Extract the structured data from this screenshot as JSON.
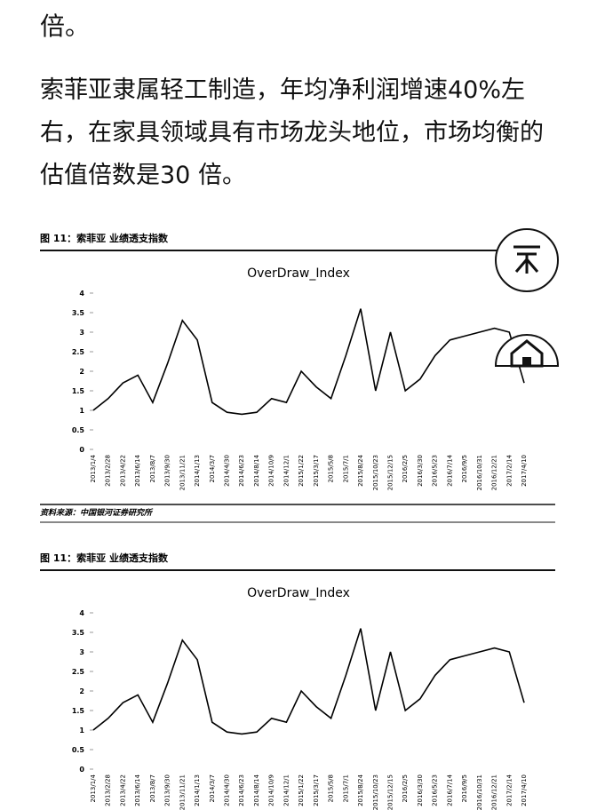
{
  "lead": "倍。",
  "paragraph": "索菲亚隶属轻工制造，年均净利润增速40%左右，在家具领域具有市场龙头地位，市场均衡的估值倍数是30 倍。",
  "figures": [
    {
      "caption": "图 11：索菲亚 业绩透支指数",
      "source": "资料来源：中国银河证券研究所",
      "chart": {
        "type": "line",
        "title": "OverDraw_Index",
        "color": "#000000",
        "categories": [
          "2013/1/4",
          "2013/2/28",
          "2013/4/22",
          "2013/6/14",
          "2013/8/7",
          "2013/9/30",
          "2013/11/21",
          "2014/1/13",
          "2014/3/7",
          "2014/4/30",
          "2014/6/23",
          "2014/8/14",
          "2014/10/9",
          "2014/12/1",
          "2015/1/22",
          "2015/3/17",
          "2015/5/8",
          "2015/7/1",
          "2015/8/24",
          "2015/10/23",
          "2015/12/15",
          "2016/2/5",
          "2016/3/30",
          "2016/5/23",
          "2016/7/14",
          "2016/9/5",
          "2016/10/31",
          "2016/12/21",
          "2017/2/14",
          "2017/4/10"
        ],
        "values": [
          1.0,
          1.3,
          1.7,
          1.9,
          1.2,
          2.2,
          3.3,
          2.8,
          1.2,
          0.95,
          0.9,
          0.95,
          1.3,
          1.2,
          2.0,
          1.6,
          1.3,
          2.4,
          3.6,
          1.5,
          3.0,
          1.5,
          1.8,
          2.4,
          2.8,
          2.9,
          3.0,
          3.1,
          3.0,
          1.7
        ],
        "ylim": [
          0,
          4
        ],
        "yticks": [
          0,
          0.5,
          1,
          1.5,
          2,
          2.5,
          3,
          3.5,
          4
        ]
      }
    },
    {
      "caption": "图 11：索菲亚 业绩透支指数",
      "chart": {
        "type": "line",
        "title": "OverDraw_Index",
        "color": "#000000",
        "categories": [
          "2013/1/4",
          "2013/2/28",
          "2013/4/22",
          "2013/6/14",
          "2013/8/7",
          "2013/9/30",
          "2013/11/21",
          "2014/1/13",
          "2014/3/7",
          "2014/4/30",
          "2014/6/23",
          "2014/8/14",
          "2014/10/9",
          "2014/12/1",
          "2015/1/22",
          "2015/3/17",
          "2015/5/8",
          "2015/7/1",
          "2015/8/24",
          "2015/10/23",
          "2015/12/15",
          "2016/2/5",
          "2016/3/30",
          "2016/5/23",
          "2016/7/14",
          "2016/9/5",
          "2016/10/31",
          "2016/12/21",
          "2017/2/14",
          "2017/4/10"
        ],
        "values": [
          1.0,
          1.3,
          1.7,
          1.9,
          1.2,
          2.2,
          3.3,
          2.8,
          1.2,
          0.95,
          0.9,
          0.95,
          1.3,
          1.2,
          2.0,
          1.6,
          1.3,
          2.4,
          3.6,
          1.5,
          3.0,
          1.5,
          1.8,
          2.4,
          2.8,
          2.9,
          3.0,
          3.1,
          3.0,
          1.7
        ],
        "ylim": [
          0,
          4
        ],
        "yticks": [
          0,
          0.5,
          1,
          1.5,
          2,
          2.5,
          3,
          3.5,
          4
        ]
      }
    }
  ]
}
